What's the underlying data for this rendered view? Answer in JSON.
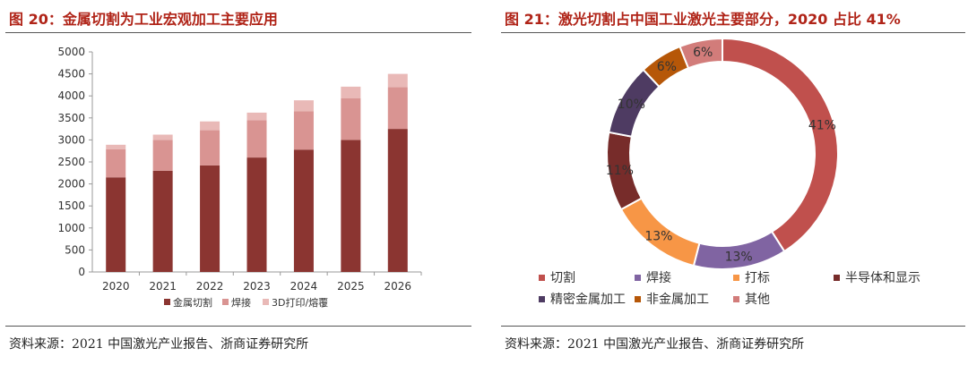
{
  "left": {
    "title": "图 20：金属切割为工业宏观加工主要应用",
    "source": "资料来源：2021 中国激光产业报告、浙商证券研究所"
  },
  "right": {
    "title": "图 21：激光切割占中国工业激光主要部分，2020 占比 41%",
    "source": "资料来源：2021 中国激光产业报告、浙商证券研究所"
  },
  "chart_data": [
    {
      "type": "bar",
      "stacked": true,
      "categories": [
        "2020",
        "2021",
        "2022",
        "2023",
        "2024",
        "2025",
        "2026"
      ],
      "series": [
        {
          "name": "金属切割",
          "color": "#8b3531",
          "values": [
            2150,
            2300,
            2420,
            2600,
            2780,
            3000,
            3250
          ]
        },
        {
          "name": "焊接",
          "color": "#d99492",
          "values": [
            640,
            700,
            800,
            850,
            870,
            950,
            950
          ]
        },
        {
          "name": "3D打印/熔覆",
          "color": "#e9b9b7",
          "values": [
            100,
            120,
            200,
            170,
            250,
            260,
            300
          ]
        }
      ],
      "ylim": [
        0,
        5000
      ],
      "yticks": [
        0,
        500,
        1000,
        1500,
        2000,
        2500,
        3000,
        3500,
        4000,
        4500,
        5000
      ],
      "legend_position": "bottom"
    },
    {
      "type": "pie",
      "donut": true,
      "slices": [
        {
          "name": "切割",
          "value": 41,
          "label": "41%",
          "color": "#c0504d"
        },
        {
          "name": "焊接",
          "value": 13,
          "label": "13%",
          "color": "#8064a2"
        },
        {
          "name": "打标",
          "value": 13,
          "label": "13%",
          "color": "#f79646"
        },
        {
          "name": "半导体和显示",
          "value": 11,
          "label": "11%",
          "color": "#772c2a"
        },
        {
          "name": "精密金属加工",
          "value": 10,
          "label": "10%",
          "color": "#4e3b62"
        },
        {
          "name": "非金属加工",
          "value": 6,
          "label": "6%",
          "color": "#b65708"
        },
        {
          "name": "其他",
          "value": 6,
          "label": "6%",
          "color": "#d27c7a"
        }
      ],
      "legend_position": "bottom"
    }
  ]
}
